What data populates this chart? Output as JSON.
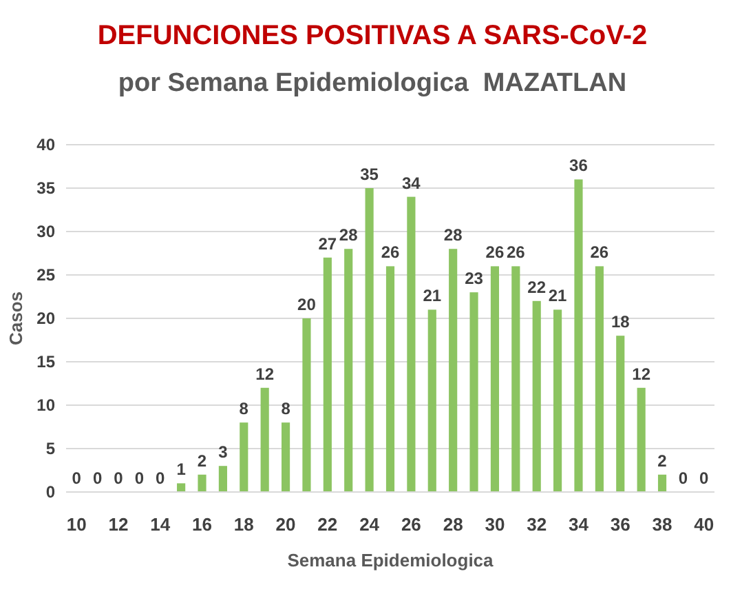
{
  "chart_data": {
    "type": "bar",
    "title": "DEFUNCIONES POSITIVAS A SARS-CoV-2",
    "subtitle": "por Semana Epidemiologica  MAZATLAN",
    "xlabel": "Semana Epidemiologica",
    "ylabel": "Casos",
    "categories": [
      "10",
      null,
      "12",
      null,
      "14",
      null,
      "16",
      null,
      "18",
      null,
      "20",
      null,
      "22",
      null,
      "24",
      null,
      "26",
      null,
      "28",
      null,
      "30",
      null,
      "32",
      null,
      "34",
      null,
      "36",
      null,
      "38",
      null,
      "40"
    ],
    "values": [
      0,
      0,
      0,
      0,
      0,
      1,
      2,
      3,
      8,
      12,
      8,
      20,
      27,
      28,
      35,
      26,
      34,
      21,
      28,
      23,
      26,
      26,
      22,
      21,
      36,
      26,
      18,
      12,
      2,
      0,
      0
    ],
    "color": "#8cc461",
    "ylim": [
      0,
      40
    ],
    "yticks": [
      0,
      5,
      10,
      15,
      20,
      25,
      30,
      35,
      40
    ],
    "grid": "y",
    "data_labels": true
  }
}
